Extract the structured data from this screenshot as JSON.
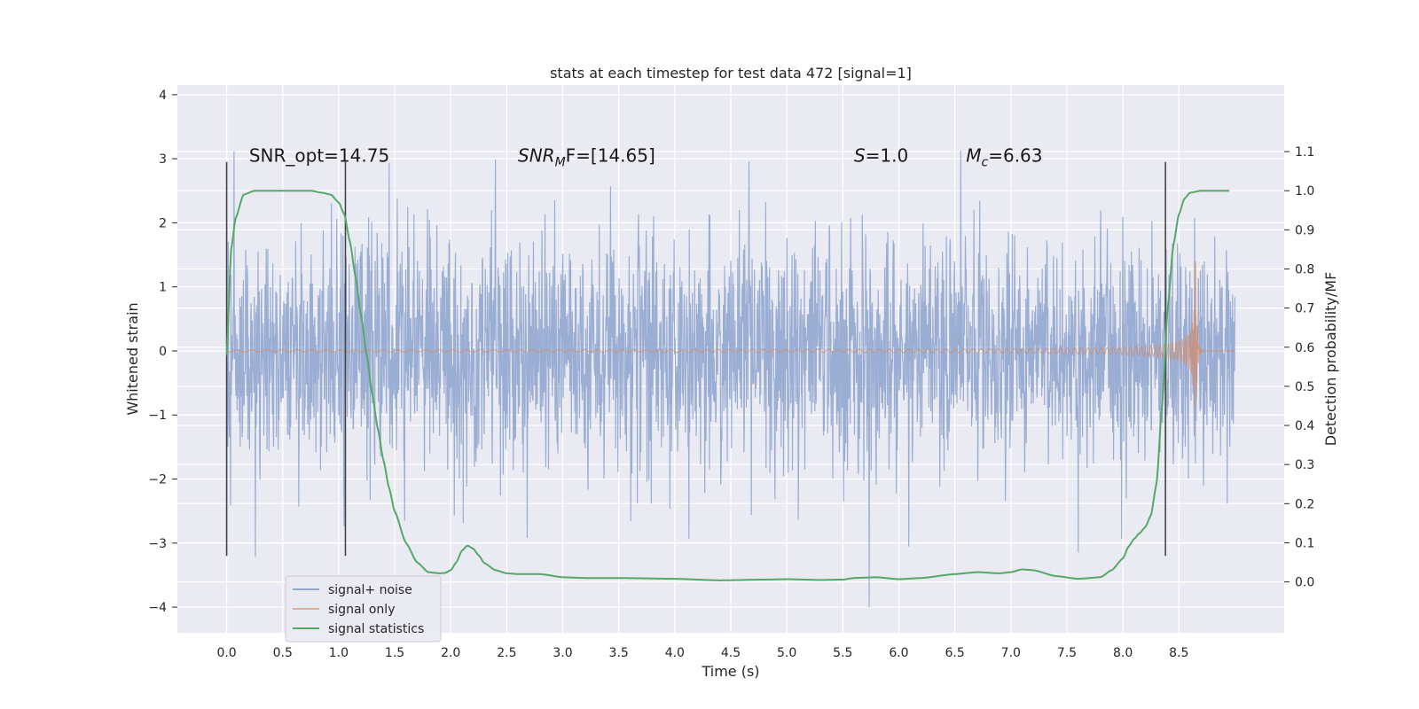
{
  "chart_data": {
    "type": "line",
    "title": "stats at each timestep for test data 472 [signal=1]",
    "xlabel": "Time (s)",
    "ylabel": "Whitened strain",
    "y2label": "Detection probability/MF",
    "xlim": [
      -0.44,
      9.44
    ],
    "ylim": [
      -4.4,
      4.15
    ],
    "y2lim": [
      -0.13,
      1.27
    ],
    "xticks": [
      0.0,
      0.5,
      1.0,
      1.5,
      2.0,
      2.5,
      3.0,
      3.5,
      4.0,
      4.5,
      5.0,
      5.5,
      6.0,
      6.5,
      7.0,
      7.5,
      8.0,
      8.5
    ],
    "xtick_labels": [
      "0.0",
      "0.5",
      "1.0",
      "1.5",
      "2.0",
      "2.5",
      "3.0",
      "3.5",
      "4.0",
      "4.5",
      "5.0",
      "5.5",
      "6.0",
      "6.5",
      "7.0",
      "7.5",
      "8.0",
      "8.5"
    ],
    "yticks": [
      -4,
      -3,
      -2,
      -1,
      0,
      1,
      2,
      3,
      4
    ],
    "ytick_labels": [
      "−4",
      "−3",
      "−2",
      "−1",
      "0",
      "1",
      "2",
      "3",
      "4"
    ],
    "y2ticks": [
      0.0,
      0.1,
      0.2,
      0.3,
      0.4,
      0.5,
      0.6,
      0.7,
      0.8,
      0.9,
      1.0,
      1.1
    ],
    "y2tick_labels": [
      "0.0",
      "0.1",
      "0.2",
      "0.3",
      "0.4",
      "0.5",
      "0.6",
      "0.7",
      "0.8",
      "0.9",
      "1.0",
      "1.1"
    ],
    "grid": true,
    "legend_position": "lower-left",
    "series": [
      {
        "name": "signal+ noise",
        "axis": "left",
        "color": "#91a6cf",
        "description": "whitened noisy strain, roughly gaussian with std ~0.9 over t=0..9.0 s",
        "t_range": [
          0.0,
          9.0
        ],
        "approx_std": 0.9,
        "min": -4.0,
        "max": 3.8
      },
      {
        "name": "signal only",
        "axis": "left",
        "color": "#dd8452",
        "description": "chirp waveform growing in amplitude, merging near t=8.65 s",
        "t_range": [
          0.0,
          9.0
        ],
        "merger_time": 8.65,
        "peak_amplitude": 1.4
      },
      {
        "name": "signal statistics",
        "axis": "right",
        "color": "#55a868",
        "x": [
          0.0,
          0.04,
          0.08,
          0.15,
          0.25,
          0.5,
          0.75,
          0.85,
          0.93,
          1.0,
          1.05,
          1.1,
          1.15,
          1.2,
          1.25,
          1.3,
          1.35,
          1.4,
          1.45,
          1.5,
          1.6,
          1.7,
          1.8,
          1.9,
          1.95,
          2.0,
          2.05,
          2.1,
          2.15,
          2.2,
          2.25,
          2.3,
          2.4,
          2.5,
          2.6,
          2.8,
          3.0,
          3.2,
          3.5,
          4.0,
          4.4,
          4.8,
          5.0,
          5.3,
          5.5,
          5.6,
          5.8,
          6.0,
          6.2,
          6.5,
          6.7,
          6.9,
          7.0,
          7.1,
          7.2,
          7.4,
          7.6,
          7.8,
          7.9,
          8.0,
          8.05,
          8.1,
          8.15,
          8.2,
          8.25,
          8.3,
          8.35,
          8.4,
          8.45,
          8.5,
          8.55,
          8.6,
          8.7,
          8.8,
          8.95
        ],
        "y": [
          0.58,
          0.85,
          0.93,
          0.99,
          1.0,
          1.0,
          1.0,
          0.995,
          0.99,
          0.97,
          0.94,
          0.87,
          0.78,
          0.68,
          0.58,
          0.48,
          0.39,
          0.31,
          0.24,
          0.18,
          0.1,
          0.05,
          0.025,
          0.022,
          0.023,
          0.03,
          0.05,
          0.08,
          0.093,
          0.085,
          0.068,
          0.048,
          0.03,
          0.022,
          0.02,
          0.02,
          0.012,
          0.01,
          0.01,
          0.008,
          0.004,
          0.006,
          0.007,
          0.005,
          0.006,
          0.01,
          0.012,
          0.007,
          0.01,
          0.02,
          0.025,
          0.022,
          0.025,
          0.032,
          0.03,
          0.015,
          0.008,
          0.012,
          0.03,
          0.06,
          0.09,
          0.11,
          0.125,
          0.14,
          0.17,
          0.25,
          0.45,
          0.7,
          0.86,
          0.94,
          0.98,
          0.995,
          1.0,
          1.0,
          1.0
        ],
        "x_end": 8.95
      }
    ],
    "vertical_lines": [
      {
        "x": 0.0,
        "y_range": [
          -3.2,
          2.95
        ]
      },
      {
        "x": 1.06,
        "y_range": [
          -3.2,
          2.95
        ]
      },
      {
        "x": 8.38,
        "y_range": [
          -3.2,
          2.95
        ]
      }
    ],
    "annotations": {
      "snr_opt": {
        "text": "SNR_opt=14.75",
        "x": 0.2,
        "y": 3.05
      },
      "snr_mf": {
        "prefix": "SNR",
        "sub": "M",
        "suffix": "F=[14.65]",
        "x": 2.6,
        "y": 3.05
      },
      "s": {
        "italic": "S",
        "suffix": "=1.0",
        "x": 5.6,
        "y": 3.05
      },
      "mc": {
        "prefix": "M",
        "sub": "c",
        "suffix": "=6.63",
        "x": 6.6,
        "y": 3.05
      }
    }
  },
  "colors": {
    "background": "#eaeaf2",
    "grid": "#ffffff",
    "noise": "#91a6cf",
    "signal": "#dd8452",
    "stats": "#55a868",
    "vline": "#444444"
  }
}
